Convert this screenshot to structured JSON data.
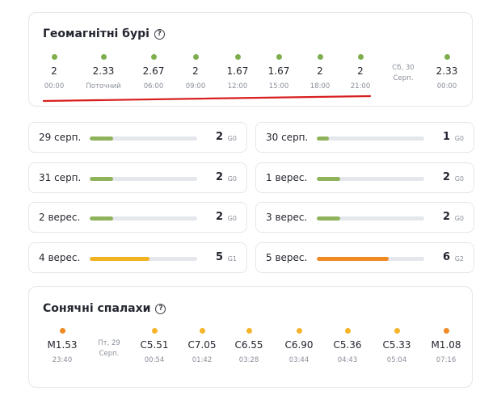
{
  "geomagnetic": {
    "title": "Геомагнітні бурі",
    "help_glyph": "?",
    "entries": [
      {
        "value": "2",
        "time": "00:00",
        "color": "#7eae4e"
      },
      {
        "value": "2.33",
        "time": "Поточний",
        "color": "#7eae4e"
      },
      {
        "value": "2.67",
        "time": "06:00",
        "color": "#7eae4e"
      },
      {
        "value": "2",
        "time": "09:00",
        "color": "#7eae4e"
      },
      {
        "value": "1.67",
        "time": "12:00",
        "color": "#7eae4e"
      },
      {
        "value": "1.67",
        "time": "15:00",
        "color": "#7eae4e"
      },
      {
        "value": "2",
        "time": "18:00",
        "color": "#7eae4e"
      },
      {
        "value": "2",
        "time": "21:00",
        "color": "#7eae4e"
      }
    ],
    "date_marker": {
      "line1": "Сб, 30",
      "line2": "Серп."
    },
    "after": [
      {
        "value": "2.33",
        "time": "00:00",
        "color": "#7eae4e"
      }
    ]
  },
  "forecast": [
    {
      "day": "29 серп.",
      "kp": "2",
      "g": "G0",
      "level": 0.22,
      "color": "#8fb35a"
    },
    {
      "day": "30 серп.",
      "kp": "1",
      "g": "G0",
      "level": 0.11,
      "color": "#8fb35a"
    },
    {
      "day": "31 серп.",
      "kp": "2",
      "g": "G0",
      "level": 0.22,
      "color": "#8fb35a"
    },
    {
      "day": "1 верес.",
      "kp": "2",
      "g": "G0",
      "level": 0.22,
      "color": "#8fb35a"
    },
    {
      "day": "2 верес.",
      "kp": "2",
      "g": "G0",
      "level": 0.22,
      "color": "#8fb35a"
    },
    {
      "day": "3 верес.",
      "kp": "2",
      "g": "G0",
      "level": 0.22,
      "color": "#8fb35a"
    },
    {
      "day": "4 верес.",
      "kp": "5",
      "g": "G1",
      "level": 0.56,
      "color": "#f0b323"
    },
    {
      "day": "5 верес.",
      "kp": "6",
      "g": "G2",
      "level": 0.67,
      "color": "#f08a24"
    }
  ],
  "solar": {
    "title": "Сонячні спалахи",
    "help_glyph": "?",
    "before": [
      {
        "value": "M1.53",
        "time": "23:40",
        "color": "#f08a24"
      }
    ],
    "date_marker": {
      "line1": "Пт, 29",
      "line2": "Серп."
    },
    "entries": [
      {
        "value": "C5.51",
        "time": "00:54",
        "color": "#f5b42a"
      },
      {
        "value": "C7.05",
        "time": "01:42",
        "color": "#f5b42a"
      },
      {
        "value": "C6.55",
        "time": "03:28",
        "color": "#f5b42a"
      },
      {
        "value": "C6.90",
        "time": "03:44",
        "color": "#f5b42a"
      },
      {
        "value": "C5.36",
        "time": "04:43",
        "color": "#f5b42a"
      },
      {
        "value": "C5.33",
        "time": "05:04",
        "color": "#f5b42a"
      },
      {
        "value": "M1.08",
        "time": "07:16",
        "color": "#f08a24"
      }
    ]
  },
  "annotation_color": "#d81f1f"
}
